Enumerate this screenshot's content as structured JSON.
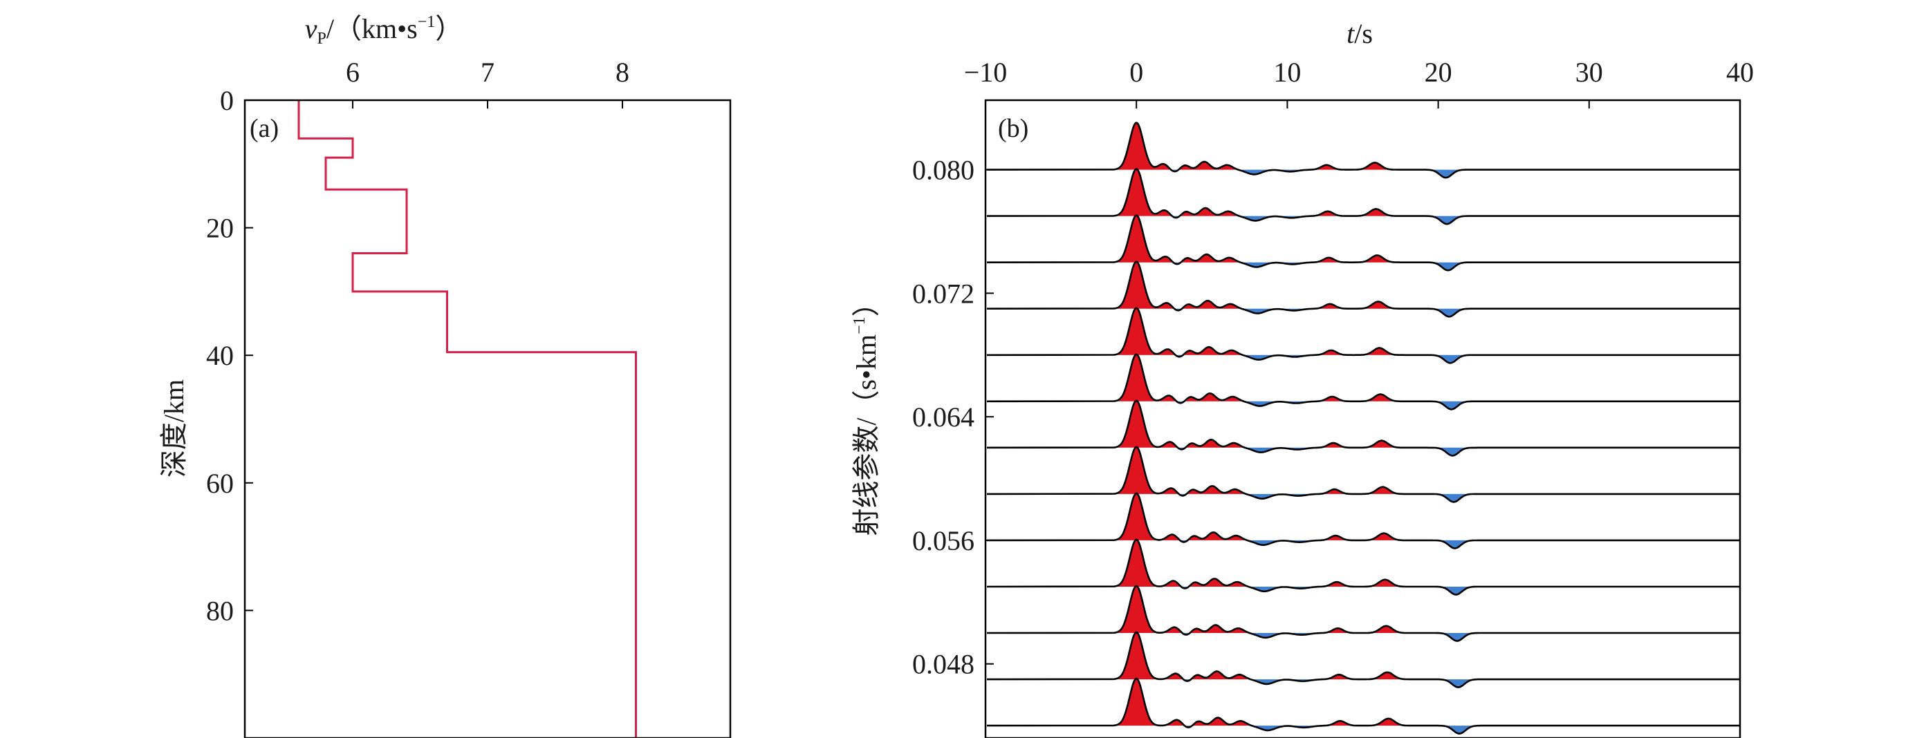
{
  "colors": {
    "velocity_line": "#d6204a",
    "trace_line": "#000000",
    "positive_fill": "#e0141f",
    "negative_fill": "#3f7fd0",
    "frame": "#000000"
  },
  "chart_data": [
    {
      "type": "line",
      "panel_label": "(a)",
      "xlabel_var": "v",
      "xlabel_sub": "P",
      "xlabel_units": "/（km•s",
      "xlabel_exp": "−1",
      "xlabel_close": "）",
      "ylabel": "深度/km",
      "xlim": [
        5.2,
        8.8
      ],
      "ylim": [
        0,
        100
      ],
      "y_inverted": true,
      "xtick_values": [
        6,
        7,
        8
      ],
      "xtick_labels": [
        "6",
        "7",
        "8"
      ],
      "ytick_values": [
        0,
        20,
        40,
        60,
        80
      ],
      "ytick_labels": [
        "0",
        "20",
        "40",
        "60",
        "80"
      ],
      "profile": [
        {
          "top": 0,
          "bottom": 6,
          "vp": 5.6
        },
        {
          "top": 6,
          "bottom": 9,
          "vp": 6.0
        },
        {
          "top": 9,
          "bottom": 14,
          "vp": 5.8
        },
        {
          "top": 14,
          "bottom": 24,
          "vp": 6.4
        },
        {
          "top": 24,
          "bottom": 30,
          "vp": 6.0
        },
        {
          "top": 30,
          "bottom": 39.5,
          "vp": 6.7
        },
        {
          "top": 39.5,
          "bottom": 100,
          "vp": 8.1
        }
      ],
      "grid": false
    },
    {
      "type": "line",
      "panel_label": "(b)",
      "xlabel_var": "t",
      "xlabel_units": "/s",
      "ylabel_main": "射线参数/（s•km",
      "ylabel_exp": "−1",
      "ylabel_close": "）",
      "xlim": [
        -10,
        40
      ],
      "ylim": [
        0.0432,
        0.0845
      ],
      "xtick_values": [
        -10,
        0,
        10,
        20,
        30,
        40
      ],
      "xtick_labels": [
        "−10",
        "0",
        "10",
        "20",
        "30",
        "40"
      ],
      "ytick_values": [
        0.048,
        0.056,
        0.064,
        0.072,
        0.08
      ],
      "ytick_labels": [
        "0.048",
        "0.056",
        "0.064",
        "0.072",
        "0.080"
      ],
      "trace_ray_params": [
        0.08,
        0.077,
        0.074,
        0.071,
        0.068,
        0.065,
        0.062,
        0.059,
        0.056,
        0.053,
        0.05,
        0.047,
        0.044
      ],
      "trace_peaks": [
        {
          "t": 0.0,
          "amp": 1.0,
          "width": 0.45
        },
        {
          "t": 1.8,
          "amp": 0.13,
          "width": 0.35
        },
        {
          "t": 3.2,
          "amp": 0.1,
          "width": 0.3
        },
        {
          "t": 4.5,
          "amp": 0.17,
          "width": 0.35
        },
        {
          "t": 6.0,
          "amp": 0.1,
          "width": 0.35
        },
        {
          "t": 12.6,
          "amp": 0.1,
          "width": 0.35
        },
        {
          "t": 15.8,
          "amp": 0.15,
          "width": 0.4
        }
      ],
      "trace_troughs": [
        {
          "t": 2.5,
          "amp": 0.06,
          "width": 0.35
        },
        {
          "t": 7.8,
          "amp": 0.1,
          "width": 0.5
        },
        {
          "t": 10.2,
          "amp": 0.04,
          "width": 0.5
        },
        {
          "t": 20.5,
          "amp": 0.17,
          "width": 0.4
        }
      ],
      "grid": false
    }
  ]
}
